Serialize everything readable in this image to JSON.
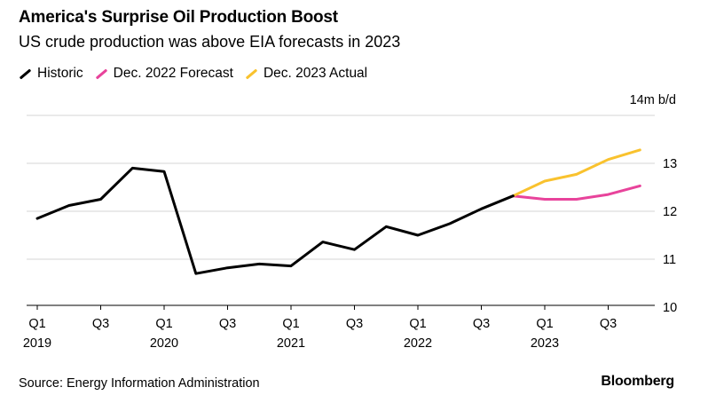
{
  "header": {
    "title": "America's Surprise Oil Production Boost",
    "subtitle": "US crude production was above EIA forecasts in 2023"
  },
  "footer": {
    "source": "Source: Energy Information Administration",
    "brand": "Bloomberg"
  },
  "chart_data": {
    "type": "line",
    "title": "America's Surprise Oil Production Boost",
    "subtitle": "US crude production was above EIA forecasts in 2023",
    "ylabel": "",
    "unit_label": "14m b/d",
    "ylim": [
      10,
      14
    ],
    "yticks": [
      10,
      11,
      12,
      13
    ],
    "grid": true,
    "legend_position": "top-left",
    "x": [
      "Q1 2019",
      "Q2 2019",
      "Q3 2019",
      "Q4 2019",
      "Q1 2020",
      "Q2 2020",
      "Q3 2020",
      "Q4 2020",
      "Q1 2021",
      "Q2 2021",
      "Q3 2021",
      "Q4 2021",
      "Q1 2022",
      "Q2 2022",
      "Q3 2022",
      "Q4 2022",
      "Q1 2023",
      "Q2 2023",
      "Q3 2023",
      "Q4 2023"
    ],
    "x_ticks": [
      {
        "label": "Q1",
        "year": "2019",
        "index": 0
      },
      {
        "label": "Q3",
        "year": "",
        "index": 2
      },
      {
        "label": "Q1",
        "year": "2020",
        "index": 4
      },
      {
        "label": "Q3",
        "year": "",
        "index": 6
      },
      {
        "label": "Q1",
        "year": "2021",
        "index": 8
      },
      {
        "label": "Q3",
        "year": "",
        "index": 10
      },
      {
        "label": "Q1",
        "year": "2022",
        "index": 12
      },
      {
        "label": "Q3",
        "year": "",
        "index": 14
      },
      {
        "label": "Q1",
        "year": "2023",
        "index": 16
      },
      {
        "label": "Q3",
        "year": "",
        "index": 18
      }
    ],
    "series": [
      {
        "name": "Historic",
        "color": "#000000",
        "values": [
          11.85,
          12.12,
          12.25,
          12.9,
          12.83,
          10.7,
          10.82,
          10.9,
          10.86,
          11.36,
          11.2,
          11.68,
          11.5,
          11.74,
          12.05,
          12.32,
          null,
          null,
          null,
          null
        ]
      },
      {
        "name": "Dec. 2022 Forecast",
        "color": "#e8439b",
        "values": [
          null,
          null,
          null,
          null,
          null,
          null,
          null,
          null,
          null,
          null,
          null,
          null,
          null,
          null,
          null,
          12.32,
          12.25,
          12.25,
          12.35,
          12.53
        ]
      },
      {
        "name": "Dec. 2023 Actual",
        "color": "#f9c22e",
        "values": [
          null,
          null,
          null,
          null,
          null,
          null,
          null,
          null,
          null,
          null,
          null,
          null,
          null,
          null,
          null,
          12.32,
          12.63,
          12.77,
          13.08,
          13.28
        ]
      }
    ]
  }
}
